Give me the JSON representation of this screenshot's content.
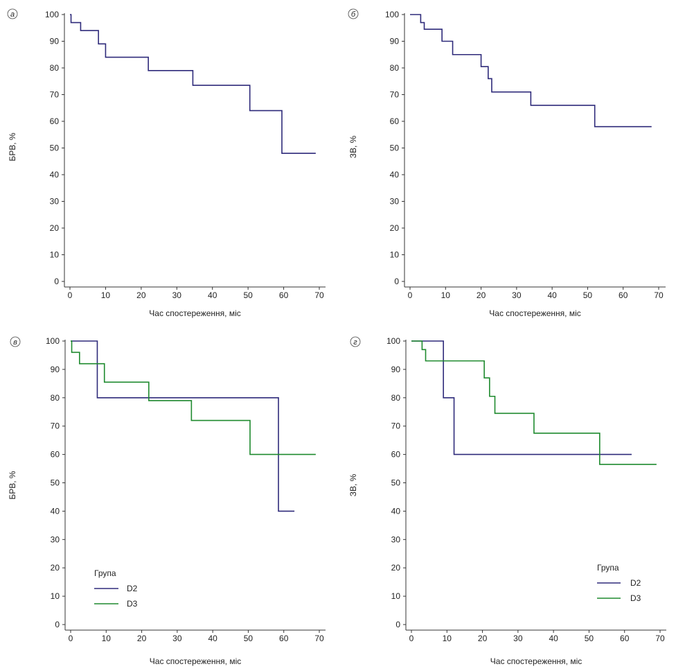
{
  "chart_data": [
    {
      "type": "line",
      "step": true,
      "panel_label": "а",
      "xlabel": "Час спостереження, міс",
      "ylabel": "БРВ, %",
      "xlim": [
        0,
        70
      ],
      "ylim": [
        0,
        100
      ],
      "xticks": [
        0,
        10,
        20,
        30,
        40,
        50,
        60,
        70
      ],
      "yticks": [
        0,
        10,
        20,
        30,
        40,
        50,
        60,
        70,
        80,
        90,
        100
      ],
      "grid": false,
      "legend": null,
      "series": [
        {
          "color": "#2e2a7a",
          "x": [
            0,
            0.3,
            3,
            8,
            10,
            22,
            34.5,
            50.5,
            59.5,
            69
          ],
          "y": [
            100,
            97,
            94,
            89,
            84,
            79,
            73.5,
            64,
            48,
            48
          ]
        }
      ]
    },
    {
      "type": "line",
      "step": true,
      "panel_label": "б",
      "xlabel": "Час спостереження, міс",
      "ylabel": "ЗВ, %",
      "xlim": [
        0,
        70
      ],
      "ylim": [
        0,
        100
      ],
      "xticks": [
        0,
        10,
        20,
        30,
        40,
        50,
        60,
        70
      ],
      "yticks": [
        0,
        10,
        20,
        30,
        40,
        50,
        60,
        70,
        80,
        90,
        100
      ],
      "grid": false,
      "legend": null,
      "series": [
        {
          "color": "#2e2a7a",
          "x": [
            0,
            3,
            4,
            9,
            12,
            20,
            22,
            23,
            34,
            52,
            68
          ],
          "y": [
            100,
            97,
            94.5,
            90,
            85,
            80.5,
            76,
            71,
            66,
            58,
            58
          ]
        }
      ]
    },
    {
      "type": "line",
      "step": true,
      "panel_label": "в",
      "xlabel": "Час спостереження, міс",
      "ylabel": "БРВ, %",
      "xlim": [
        0,
        70
      ],
      "ylim": [
        0,
        100
      ],
      "xticks": [
        0,
        10,
        20,
        30,
        40,
        50,
        60,
        70
      ],
      "yticks": [
        0,
        10,
        20,
        30,
        40,
        50,
        60,
        70,
        80,
        90,
        100
      ],
      "grid": false,
      "legend": {
        "title": "Група",
        "position": "bottom-left"
      },
      "series": [
        {
          "name": "D2",
          "color": "#2e2a7a",
          "x": [
            0,
            7.5,
            58.5,
            63
          ],
          "y": [
            100,
            80,
            40,
            40
          ]
        },
        {
          "name": "D3",
          "color": "#1e8a2e",
          "x": [
            0,
            0.3,
            2.5,
            9.5,
            22,
            34,
            50.5,
            69
          ],
          "y": [
            100,
            96,
            92,
            85.5,
            79,
            72,
            60,
            60
          ]
        }
      ]
    },
    {
      "type": "line",
      "step": true,
      "panel_label": "г",
      "xlabel": "Час спостереження, міс",
      "ylabel": "ЗВ, %",
      "xlim": [
        0,
        70
      ],
      "ylim": [
        0,
        100
      ],
      "xticks": [
        0,
        10,
        20,
        30,
        40,
        50,
        60,
        70
      ],
      "yticks": [
        0,
        10,
        20,
        30,
        40,
        50,
        60,
        70,
        80,
        90,
        100
      ],
      "grid": false,
      "legend": {
        "title": "Група",
        "position": "bottom-right"
      },
      "series": [
        {
          "name": "D2",
          "color": "#2e2a7a",
          "x": [
            0,
            9,
            12,
            62
          ],
          "y": [
            100,
            80,
            60,
            60
          ]
        },
        {
          "name": "D3",
          "color": "#1e8a2e",
          "x": [
            0,
            3,
            4,
            20.5,
            22,
            23.5,
            34.5,
            53,
            69
          ],
          "y": [
            100,
            97,
            93,
            87,
            80.5,
            74.5,
            67.5,
            56.5,
            56.5
          ]
        }
      ]
    }
  ]
}
